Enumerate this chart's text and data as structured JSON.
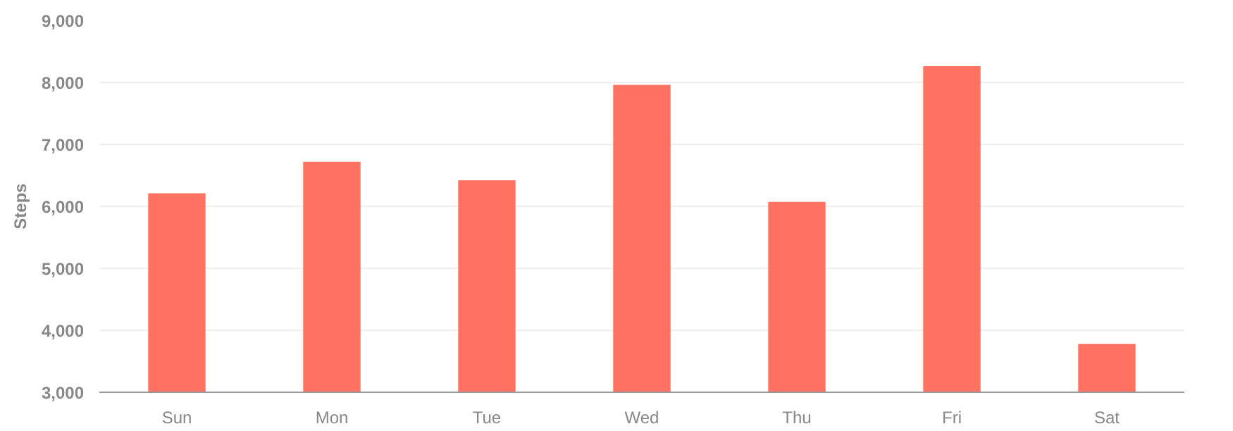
{
  "chart_data": {
    "type": "bar",
    "ylabel": "Steps",
    "categories": [
      "Sun",
      "Mon",
      "Tue",
      "Wed",
      "Thu",
      "Fri",
      "Sat"
    ],
    "values": [
      6210,
      6720,
      6420,
      7960,
      6070,
      8260,
      3780
    ],
    "color": "#ff7160",
    "ylim": [
      3000,
      9000
    ],
    "yticks": [
      {
        "value": 3000,
        "label": "3,000"
      },
      {
        "value": 4000,
        "label": "4,000"
      },
      {
        "value": 5000,
        "label": "5,000"
      },
      {
        "value": 6000,
        "label": "6,000"
      },
      {
        "value": 7000,
        "label": "7,000"
      },
      {
        "value": 8000,
        "label": "8,000"
      },
      {
        "value": 9000,
        "label": "9,000"
      }
    ],
    "grid": "y"
  }
}
